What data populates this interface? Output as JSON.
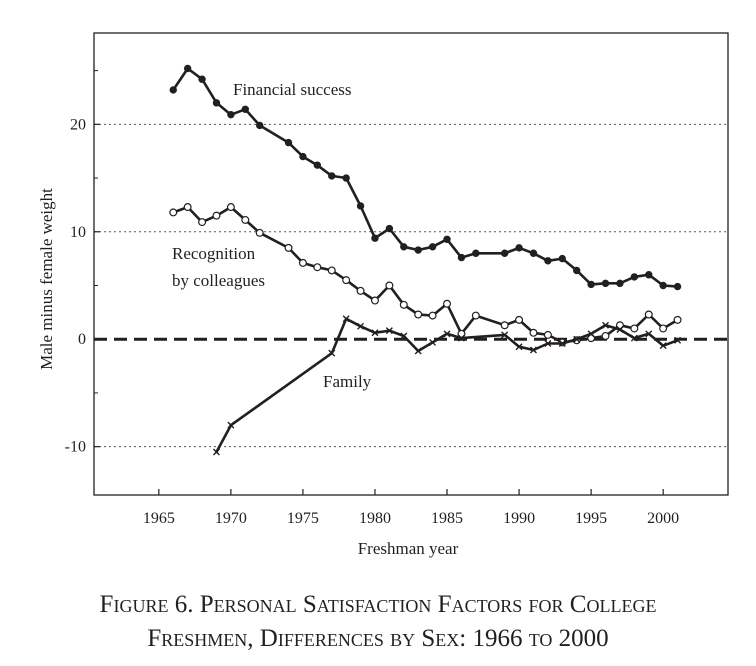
{
  "chart_data": {
    "type": "line",
    "title": "",
    "xlabel": "Freshman year",
    "ylabel": "Male minus female weight",
    "xlim": [
      1960.5,
      2004.5
    ],
    "ylim": [
      -14.5,
      28.5
    ],
    "xticks": [
      1965,
      1970,
      1975,
      1980,
      1985,
      1990,
      1995,
      2000
    ],
    "yticks": [
      20,
      10,
      0,
      -10
    ],
    "ytick_labels": [
      "20",
      "10",
      "0",
      "-10"
    ],
    "gridlines_y": [
      20,
      10,
      -10
    ],
    "zero_line": 0,
    "series": [
      {
        "name": "Financial success",
        "marker": "filled-circle",
        "x": [
          1966,
          1967,
          1968,
          1969,
          1970,
          1971,
          1972,
          1974,
          1975,
          1976,
          1977,
          1978,
          1979,
          1980,
          1981,
          1982,
          1983,
          1984,
          1985,
          1986,
          1987,
          1989,
          1990,
          1991,
          1992,
          1993,
          1994,
          1995,
          1996,
          1997,
          1998,
          1999,
          2000,
          2001
        ],
        "y": [
          23.2,
          25.2,
          24.2,
          22.0,
          20.9,
          21.4,
          19.9,
          18.3,
          17.0,
          16.2,
          15.2,
          15.0,
          12.4,
          9.4,
          10.3,
          8.6,
          8.3,
          8.6,
          9.3,
          7.6,
          8.0,
          8.0,
          8.5,
          8.0,
          7.3,
          7.5,
          6.4,
          5.1,
          5.2,
          5.2,
          5.8,
          6.0,
          5.0,
          4.9
        ]
      },
      {
        "name": "Recognition by colleagues",
        "marker": "open-circle",
        "x": [
          1966,
          1967,
          1968,
          1969,
          1970,
          1971,
          1972,
          1974,
          1975,
          1976,
          1977,
          1978,
          1979,
          1980,
          1981,
          1982,
          1983,
          1984,
          1985,
          1986,
          1987,
          1989,
          1990,
          1991,
          1992,
          1993,
          1994,
          1995,
          1996,
          1997,
          1998,
          1999,
          2000,
          2001
        ],
        "y": [
          11.8,
          12.3,
          10.9,
          11.5,
          12.3,
          11.1,
          9.9,
          8.5,
          7.1,
          6.7,
          6.4,
          5.5,
          4.5,
          3.6,
          5.0,
          3.2,
          2.3,
          2.2,
          3.3,
          0.5,
          2.2,
          1.3,
          1.8,
          0.6,
          0.4,
          -0.3,
          -0.1,
          0.1,
          0.3,
          1.3,
          1.0,
          2.3,
          1.0,
          1.8
        ]
      },
      {
        "name": "Family",
        "marker": "cross",
        "x": [
          1969,
          1970,
          1977,
          1978,
          1979,
          1980,
          1981,
          1982,
          1983,
          1984,
          1985,
          1986,
          1989,
          1990,
          1991,
          1992,
          1993,
          1994,
          1995,
          1996,
          1997,
          1998,
          1999,
          2000,
          2001
        ],
        "y": [
          -10.5,
          -8.0,
          -1.3,
          1.9,
          1.2,
          0.6,
          0.8,
          0.3,
          -1.1,
          -0.3,
          0.5,
          0.1,
          0.4,
          -0.7,
          -1.0,
          -0.4,
          -0.4,
          0.0,
          0.5,
          1.3,
          0.9,
          0.1,
          0.5,
          -0.6,
          -0.1
        ]
      }
    ],
    "annotations": [
      {
        "text": "Financial success",
        "series": "Financial success"
      },
      {
        "text": "Recognition",
        "series": "Recognition by colleagues"
      },
      {
        "text": "by colleagues",
        "series": "Recognition by colleagues"
      },
      {
        "text": "Family",
        "series": "Family"
      }
    ]
  },
  "caption": {
    "line1": "Figure 6. Personal Satisfaction Factors for College",
    "line2": "Freshmen, Differences by Sex: 1966 to 2000"
  },
  "colors": {
    "ink": "#231f20",
    "grid": "#555555",
    "background": "#ffffff"
  }
}
